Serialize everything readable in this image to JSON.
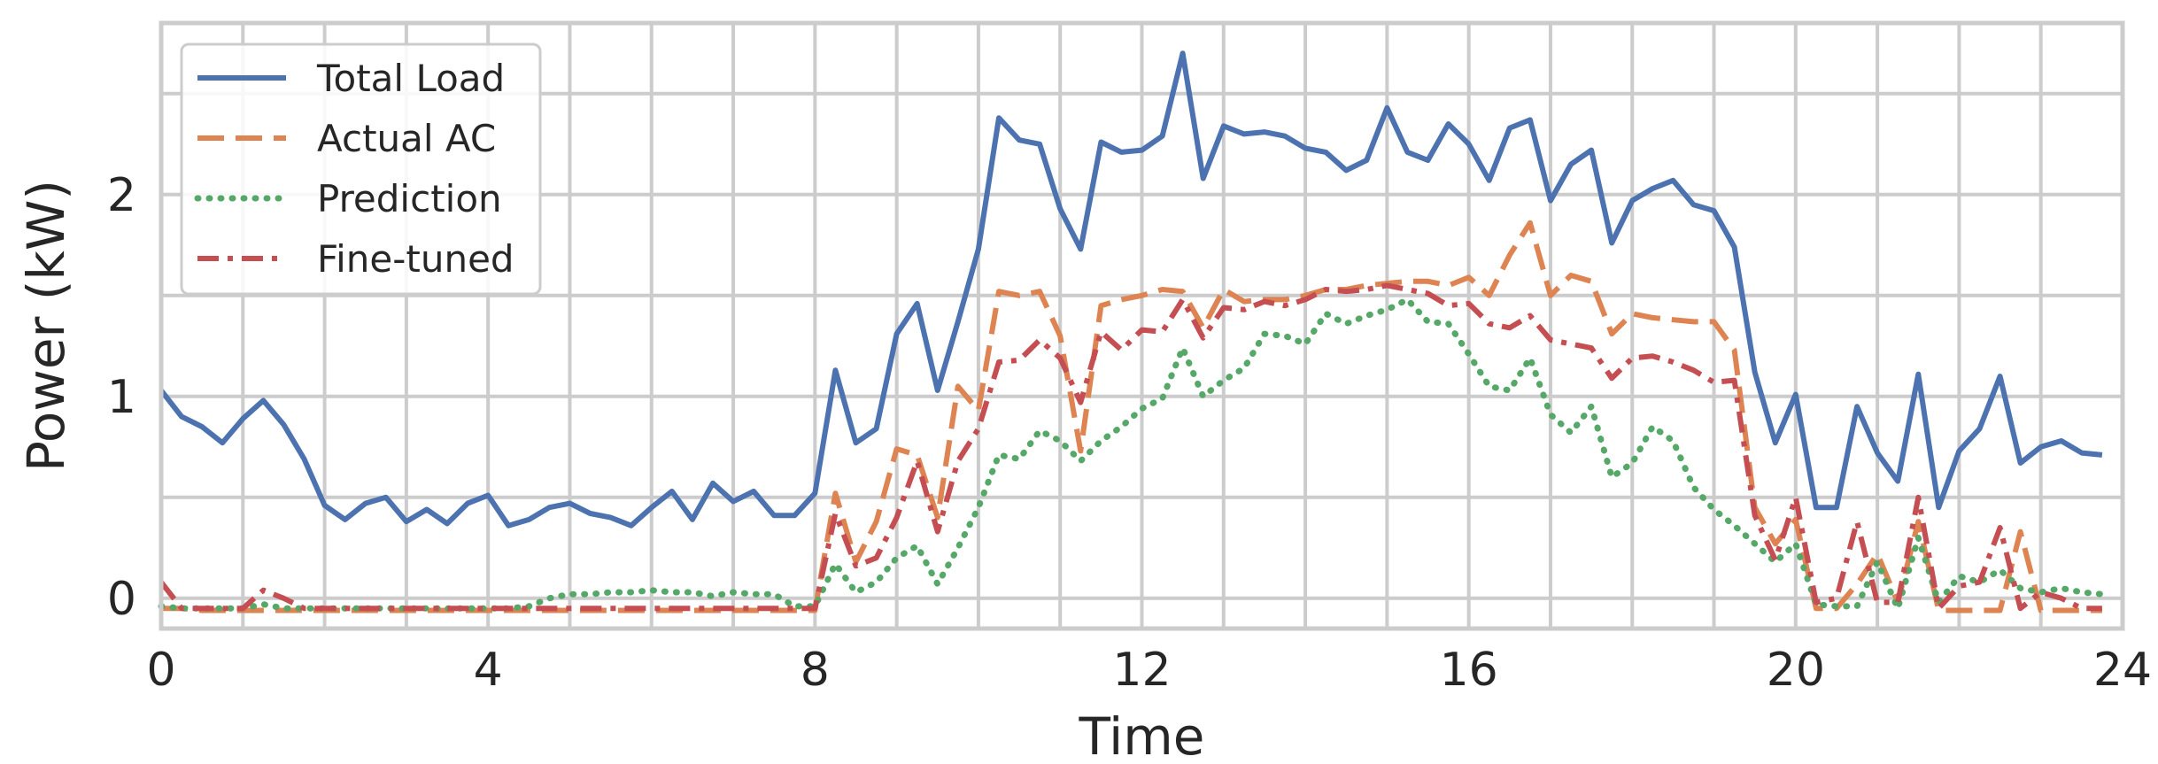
{
  "chart_data": {
    "type": "line",
    "xlabel": "Time",
    "ylabel": "Power (kW)",
    "xlim": [
      0,
      24
    ],
    "ylim": [
      -0.15,
      2.85
    ],
    "xticks": [
      0,
      4,
      8,
      12,
      16,
      20,
      24
    ],
    "yticks": [
      0,
      1,
      2
    ],
    "grid": true,
    "legend_position": "top-left",
    "x": [
      0,
      0.25,
      0.5,
      0.75,
      1,
      1.25,
      1.5,
      1.75,
      2,
      2.25,
      2.5,
      2.75,
      3,
      3.25,
      3.5,
      3.75,
      4,
      4.25,
      4.5,
      4.75,
      5,
      5.25,
      5.5,
      5.75,
      6,
      6.25,
      6.5,
      6.75,
      7,
      7.25,
      7.5,
      7.75,
      8,
      8.25,
      8.5,
      8.75,
      9,
      9.25,
      9.5,
      9.75,
      10,
      10.25,
      10.5,
      10.75,
      11,
      11.25,
      11.5,
      11.75,
      12,
      12.25,
      12.5,
      12.75,
      13,
      13.25,
      13.5,
      13.75,
      14,
      14.25,
      14.5,
      14.75,
      15,
      15.25,
      15.5,
      15.75,
      16,
      16.25,
      16.5,
      16.75,
      17,
      17.25,
      17.5,
      17.75,
      18,
      18.25,
      18.5,
      18.75,
      19,
      19.25,
      19.5,
      19.75,
      20,
      20.25,
      20.5,
      20.75,
      21,
      21.25,
      21.5,
      21.75,
      22,
      22.25,
      22.5,
      22.75,
      23,
      23.25,
      23.5,
      23.75
    ],
    "series": [
      {
        "name": "Total Load",
        "color": "#4c72b0",
        "style": "solid",
        "values": [
          1.03,
          0.9,
          0.85,
          0.77,
          0.89,
          0.98,
          0.86,
          0.69,
          0.46,
          0.39,
          0.47,
          0.5,
          0.38,
          0.44,
          0.37,
          0.47,
          0.51,
          0.36,
          0.39,
          0.45,
          0.47,
          0.42,
          0.4,
          0.36,
          0.45,
          0.53,
          0.39,
          0.57,
          0.48,
          0.53,
          0.41,
          0.41,
          0.52,
          1.13,
          0.77,
          0.84,
          1.31,
          1.46,
          1.03,
          1.37,
          1.73,
          2.38,
          2.27,
          2.25,
          1.93,
          1.73,
          2.26,
          2.21,
          2.22,
          2.29,
          2.7,
          2.08,
          2.34,
          2.3,
          2.31,
          2.29,
          2.23,
          2.21,
          2.12,
          2.17,
          2.43,
          2.21,
          2.17,
          2.35,
          2.25,
          2.07,
          2.33,
          2.37,
          1.97,
          2.15,
          2.22,
          1.76,
          1.97,
          2.03,
          2.07,
          1.95,
          1.92,
          1.74,
          1.12,
          0.77,
          1.01,
          0.45,
          0.45,
          0.95,
          0.72,
          0.58,
          1.11,
          0.45,
          0.73,
          0.84,
          1.1,
          0.67,
          0.75,
          0.78,
          0.72,
          0.71
        ]
      },
      {
        "name": "Actual AC",
        "color": "#dd8452",
        "style": "dashed",
        "values": [
          -0.05,
          -0.05,
          -0.06,
          -0.06,
          -0.06,
          -0.06,
          -0.06,
          -0.06,
          -0.06,
          -0.06,
          -0.06,
          -0.06,
          -0.06,
          -0.06,
          -0.06,
          -0.06,
          -0.06,
          -0.06,
          -0.06,
          -0.06,
          -0.06,
          -0.06,
          -0.06,
          -0.06,
          -0.06,
          -0.06,
          -0.06,
          -0.06,
          -0.06,
          -0.06,
          -0.06,
          -0.06,
          -0.06,
          0.52,
          0.18,
          0.38,
          0.74,
          0.71,
          0.4,
          1.05,
          0.93,
          1.52,
          1.5,
          1.52,
          1.3,
          0.73,
          1.45,
          1.48,
          1.5,
          1.53,
          1.52,
          1.34,
          1.53,
          1.47,
          1.48,
          1.48,
          1.5,
          1.53,
          1.53,
          1.55,
          1.56,
          1.57,
          1.57,
          1.55,
          1.59,
          1.5,
          1.7,
          1.86,
          1.5,
          1.6,
          1.57,
          1.31,
          1.41,
          1.39,
          1.38,
          1.37,
          1.37,
          1.23,
          0.45,
          0.27,
          0.39,
          -0.05,
          -0.05,
          0.07,
          0.22,
          -0.02,
          0.38,
          -0.06,
          -0.06,
          -0.06,
          -0.06,
          0.33,
          -0.06,
          -0.06,
          -0.06,
          -0.06
        ]
      },
      {
        "name": "Prediction",
        "color": "#55a868",
        "style": "dotted",
        "values": [
          -0.04,
          -0.05,
          -0.05,
          -0.05,
          -0.05,
          -0.03,
          -0.05,
          -0.05,
          -0.05,
          -0.05,
          -0.05,
          -0.05,
          -0.05,
          -0.05,
          -0.05,
          -0.05,
          -0.05,
          -0.05,
          -0.04,
          0.0,
          0.02,
          0.02,
          0.03,
          0.03,
          0.04,
          0.03,
          0.03,
          0.01,
          0.03,
          0.02,
          0.02,
          -0.04,
          -0.04,
          0.17,
          0.03,
          0.08,
          0.2,
          0.26,
          0.07,
          0.25,
          0.45,
          0.71,
          0.69,
          0.83,
          0.78,
          0.68,
          0.78,
          0.85,
          0.94,
          0.99,
          1.24,
          1.0,
          1.08,
          1.14,
          1.31,
          1.3,
          1.26,
          1.41,
          1.36,
          1.4,
          1.43,
          1.48,
          1.37,
          1.36,
          1.21,
          1.05,
          1.03,
          1.19,
          0.91,
          0.82,
          0.95,
          0.6,
          0.67,
          0.85,
          0.78,
          0.55,
          0.44,
          0.36,
          0.27,
          0.18,
          0.27,
          -0.03,
          -0.04,
          -0.04,
          0.18,
          -0.05,
          0.3,
          -0.02,
          0.11,
          0.08,
          0.14,
          0.05,
          0.03,
          0.05,
          0.03,
          0.02
        ]
      },
      {
        "name": "Fine-tuned",
        "color": "#c44e52",
        "style": "dashdot",
        "values": [
          0.08,
          -0.05,
          -0.05,
          -0.05,
          -0.05,
          0.04,
          0.0,
          -0.05,
          -0.05,
          -0.05,
          -0.05,
          -0.05,
          -0.05,
          -0.05,
          -0.05,
          -0.05,
          -0.05,
          -0.05,
          -0.05,
          -0.05,
          -0.05,
          -0.05,
          -0.05,
          -0.05,
          -0.05,
          -0.05,
          -0.05,
          -0.05,
          -0.05,
          -0.05,
          -0.05,
          -0.05,
          -0.05,
          0.42,
          0.16,
          0.2,
          0.4,
          0.68,
          0.33,
          0.68,
          0.84,
          1.17,
          1.18,
          1.28,
          1.19,
          0.97,
          1.32,
          1.23,
          1.33,
          1.32,
          1.48,
          1.29,
          1.44,
          1.43,
          1.47,
          1.45,
          1.48,
          1.53,
          1.52,
          1.53,
          1.55,
          1.53,
          1.51,
          1.45,
          1.46,
          1.36,
          1.34,
          1.4,
          1.28,
          1.26,
          1.24,
          1.09,
          1.19,
          1.2,
          1.17,
          1.13,
          1.07,
          1.08,
          0.41,
          0.19,
          0.5,
          -0.02,
          0.0,
          0.38,
          -0.02,
          -0.02,
          0.5,
          -0.05,
          0.06,
          0.08,
          0.35,
          -0.05,
          0.03,
          0.0,
          -0.05,
          -0.05
        ]
      }
    ]
  }
}
